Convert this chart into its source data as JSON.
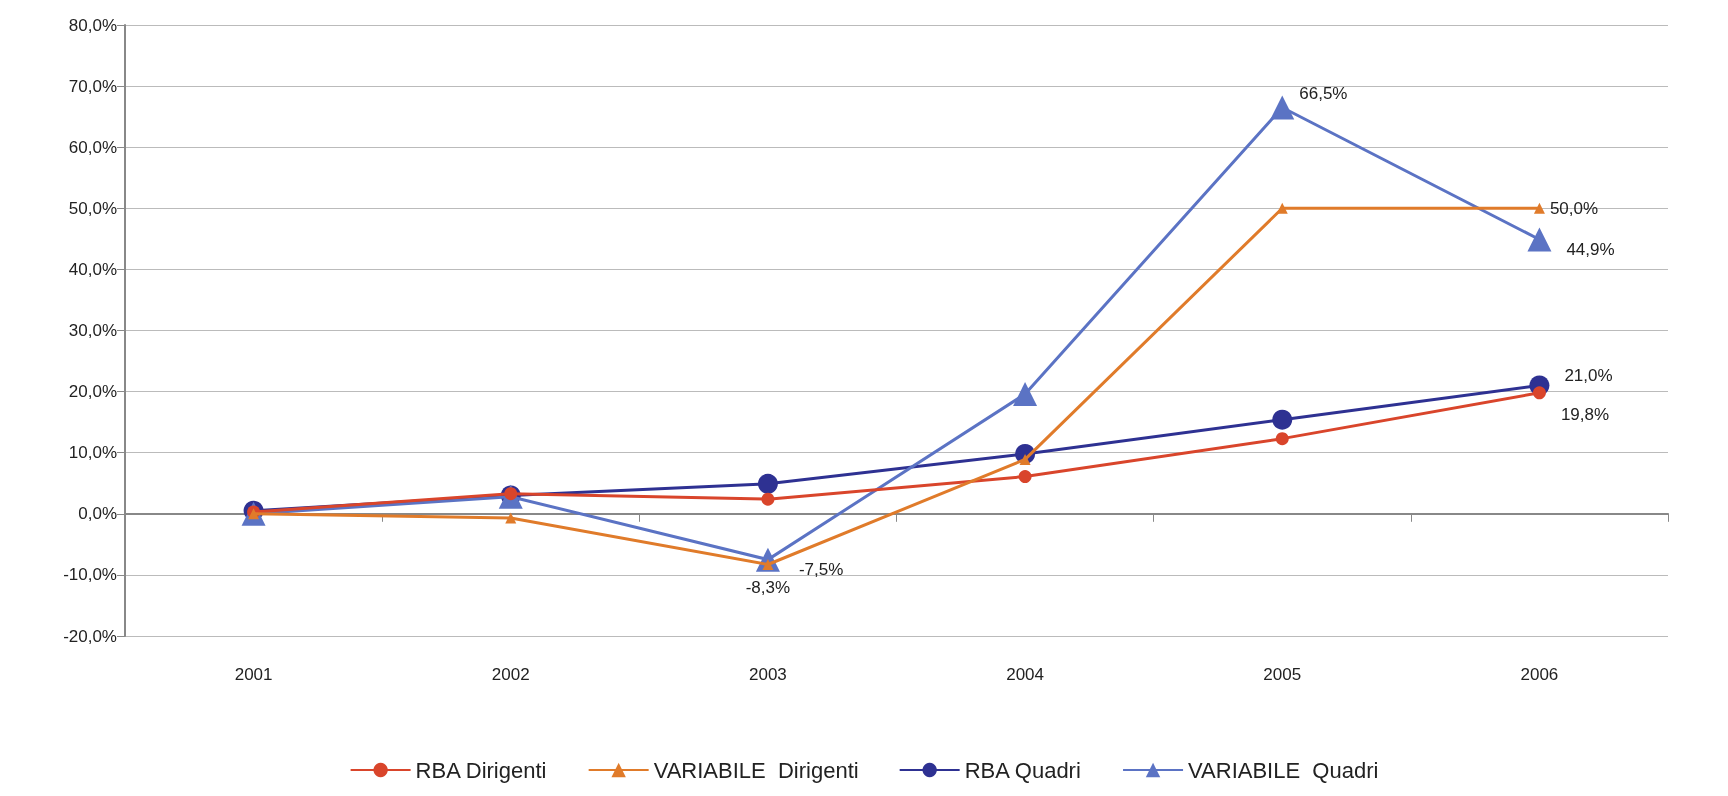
{
  "chart_data": {
    "type": "line",
    "categories": [
      "2001",
      "2002",
      "2003",
      "2004",
      "2005",
      "2006"
    ],
    "ylim": [
      -20,
      80
    ],
    "yticks": [
      {
        "value": -20,
        "label": "-20,0%"
      },
      {
        "value": -10,
        "label": "-10,0%"
      },
      {
        "value": 0,
        "label": "0,0%"
      },
      {
        "value": 10,
        "label": "10,0%"
      },
      {
        "value": 20,
        "label": "20,0%"
      },
      {
        "value": 30,
        "label": "30,0%"
      },
      {
        "value": 40,
        "label": "40,0%"
      },
      {
        "value": 50,
        "label": "50,0%"
      },
      {
        "value": 60,
        "label": "60,0%"
      },
      {
        "value": 70,
        "label": "70,0%"
      },
      {
        "value": 80,
        "label": "80,0%"
      }
    ],
    "grid": "y",
    "legend": "bottom",
    "line_style": "solid",
    "series": [
      {
        "name": "RBA Dirigenti",
        "color": "#d9452b",
        "marker": "circle",
        "values": [
          0.3,
          3.3,
          2.4,
          6.1,
          12.3,
          19.8
        ],
        "value_labels": [
          null,
          null,
          null,
          null,
          null,
          "19,8%"
        ]
      },
      {
        "name": "VARIABILE  Dirigenti",
        "color": "#e07b2a",
        "marker": "triangle",
        "values": [
          0,
          -0.7,
          -8.3,
          8.9,
          50,
          50
        ],
        "value_labels": [
          null,
          null,
          "-8,3%",
          null,
          null,
          "50,0%"
        ]
      },
      {
        "name": "RBA Quadri",
        "color": "#2e3192",
        "marker": "circle",
        "values": [
          0.5,
          3,
          4.9,
          9.8,
          15.4,
          21
        ],
        "value_labels": [
          null,
          null,
          null,
          null,
          null,
          "21,0%"
        ]
      },
      {
        "name": "VARIABILE  Quadri",
        "color": "#5b73c4",
        "marker": "triangle",
        "values": [
          0,
          2.8,
          -7.5,
          19.6,
          66.5,
          44.9
        ],
        "value_labels": [
          null,
          null,
          "-7,5%",
          null,
          "66,5%",
          "44,9%"
        ]
      }
    ]
  }
}
